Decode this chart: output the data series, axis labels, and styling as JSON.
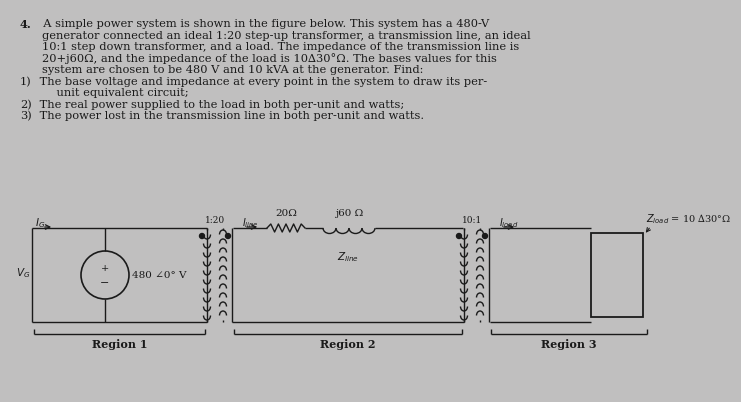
{
  "bg_color": "#c0bfbf",
  "text_color": "#1a1a1a",
  "paragraph_lines": [
    [
      "4.",
      "  A simple power system is shown in the figure below. This system has a 480-V"
    ],
    [
      "",
      "generator connected an ideal 1:20 step-up transformer, a transmission line, an ideal"
    ],
    [
      "",
      "10:1 step down transformer, and a load. The impedance of the transmission line is"
    ],
    [
      "",
      "20+j60Ω, and the impedance of the load is 10∆30°Ω. The bases values for this"
    ],
    [
      "",
      "system are chosen to be 480 V and 10 kVA at the generator. Find:"
    ],
    [
      "1)",
      " The base voltage and impedance at every point in the system to draw its per-"
    ],
    [
      "",
      "    unit equivalent circuit;"
    ],
    [
      "2)",
      " The real power supplied to the load in both per-unit and watts;"
    ],
    [
      "3)",
      " The power lost in the transmission line in both per-unit and watts."
    ]
  ],
  "region_labels": [
    "Region 1",
    "Region 2",
    "Region 3"
  ],
  "r_label": "20Ω",
  "l_label": "j60 Ω",
  "zline_label": "Zₙᴵⁿᵉ",
  "vg_val": "480 ∠0° V",
  "tf1_label": "1:20",
  "tf2_label": "10:1",
  "zload_label": "Zₗₒₐᵈ = 10 ∆30°Ω"
}
